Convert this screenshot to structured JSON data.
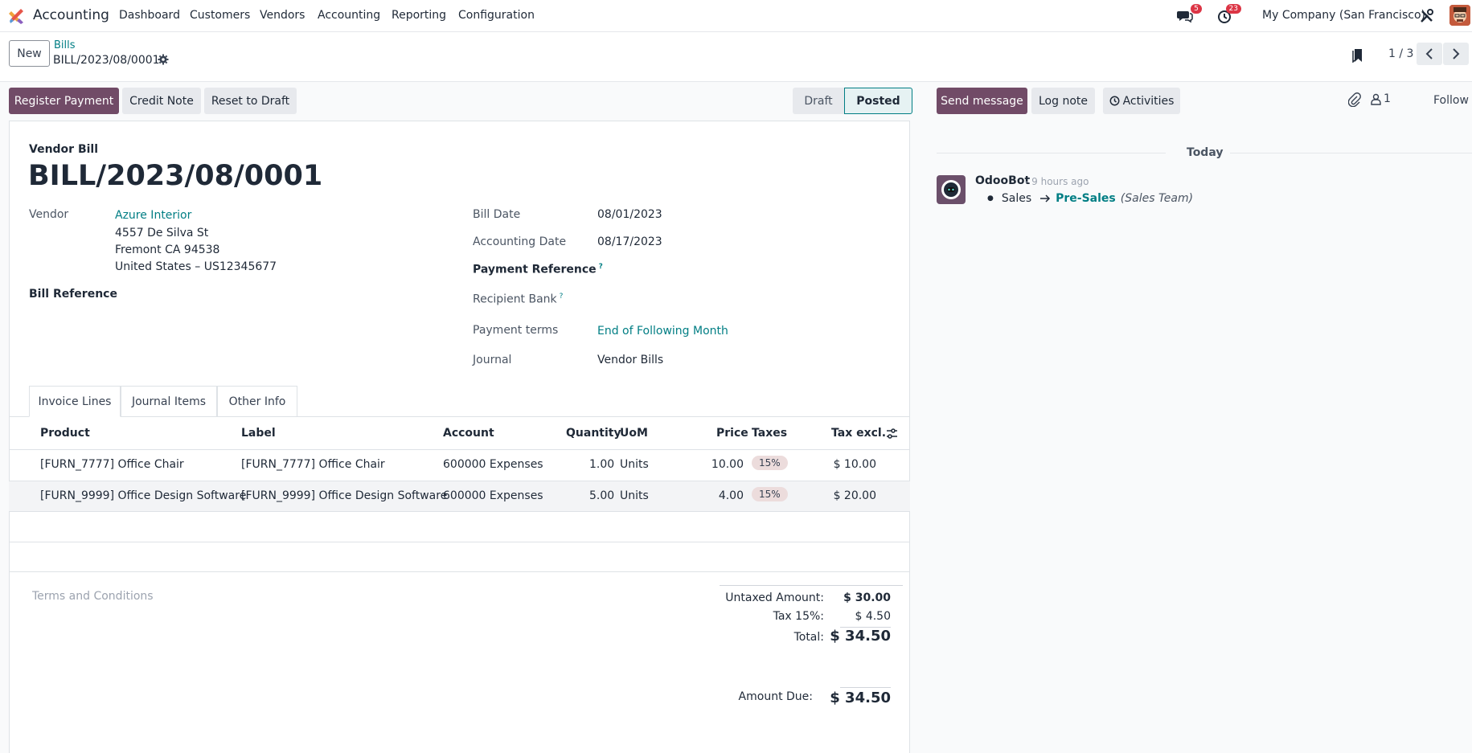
{
  "navbar": {
    "app_name": "Accounting",
    "menu": [
      "Dashboard",
      "Customers",
      "Vendors",
      "Accounting",
      "Reporting",
      "Configuration"
    ],
    "messages_count": "5",
    "activities_count": "23",
    "company": "My Company (San Francisco)"
  },
  "control": {
    "new_label": "New",
    "breadcrumb_parent": "Bills",
    "breadcrumb_current": "BILL/2023/08/0001",
    "pager": "1 / 3"
  },
  "actions": {
    "register_payment": "Register Payment",
    "credit_note": "Credit Note",
    "reset_to_draft": "Reset to Draft"
  },
  "status": {
    "draft": "Draft",
    "posted": "Posted"
  },
  "form": {
    "doc_type": "Vendor Bill",
    "doc_number": "BILL/2023/08/0001",
    "vendor_label": "Vendor",
    "vendor_name": "Azure Interior",
    "vendor_address_1": "4557 De Silva St",
    "vendor_address_2": "Fremont CA 94538",
    "vendor_address_3": "United States – US12345677",
    "bill_reference_label": "Bill Reference",
    "bill_date_label": "Bill Date",
    "bill_date": "08/01/2023",
    "accounting_date_label": "Accounting Date",
    "accounting_date": "08/17/2023",
    "payment_reference_label": "Payment Reference",
    "recipient_bank_label": "Recipient Bank",
    "payment_terms_label": "Payment terms",
    "payment_terms": "End of Following Month",
    "journal_label": "Journal",
    "journal": "Vendor Bills",
    "help_mark": "?"
  },
  "tabs": [
    "Invoice Lines",
    "Journal Items",
    "Other Info"
  ],
  "table": {
    "headers": {
      "product": "Product",
      "label": "Label",
      "account": "Account",
      "quantity": "Quantity",
      "uom": "UoM",
      "price": "Price",
      "taxes": "Taxes",
      "tax_excl": "Tax excl."
    },
    "rows": [
      {
        "product": "[FURN_7777] Office Chair",
        "label": "[FURN_7777] Office Chair",
        "account": "600000 Expenses",
        "quantity": "1.00",
        "uom": "Units",
        "price": "10.00",
        "tax": "15%",
        "subtotal": "$ 10.00"
      },
      {
        "product": "[FURN_9999] Office Design Software",
        "label": "[FURN_9999] Office Design Software",
        "account": "600000 Expenses",
        "quantity": "5.00",
        "uom": "Units",
        "price": "4.00",
        "tax": "15%",
        "subtotal": "$ 20.00"
      }
    ]
  },
  "terms_placeholder": "Terms and Conditions",
  "totals": {
    "untaxed_label": "Untaxed Amount:",
    "untaxed": "$ 30.00",
    "tax_label": "Tax 15%:",
    "tax": "$ 4.50",
    "total_label": "Total:",
    "total": "$ 34.50",
    "due_label": "Amount Due:",
    "due": "$ 34.50"
  },
  "chatter": {
    "send_message": "Send message",
    "log_note": "Log note",
    "activities": "Activities",
    "followers_count": "1",
    "follow": "Follow",
    "date_separator": "Today",
    "author": "OdooBot",
    "time": "- 9 hours ago",
    "change_old": "Sales",
    "change_new": "Pre-Sales",
    "change_field": "(Sales Team)"
  },
  "colors": {
    "primary": "#714b67",
    "link": "#017e84",
    "badge": "#dc3545"
  }
}
